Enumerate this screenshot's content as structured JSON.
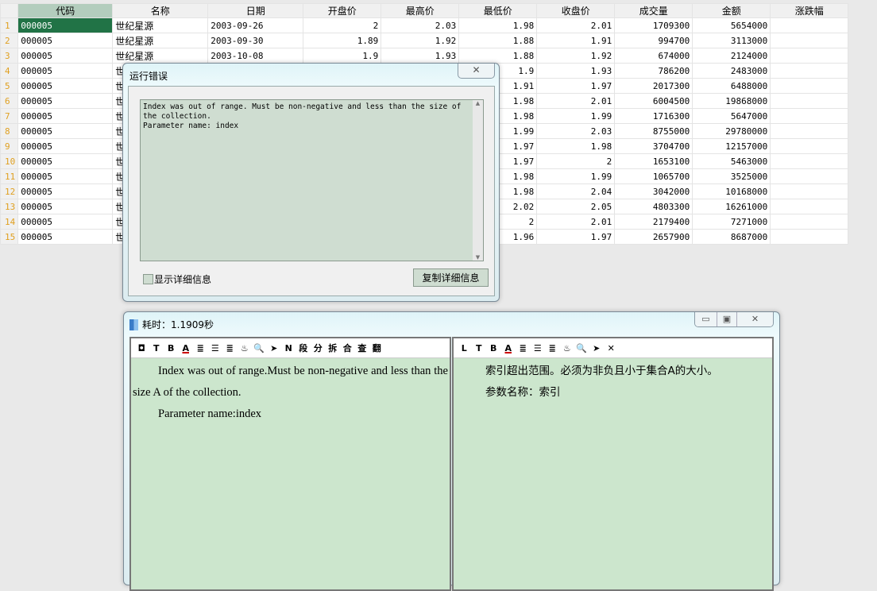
{
  "grid": {
    "columns": [
      "代码",
      "名称",
      "日期",
      "开盘价",
      "最高价",
      "最低价",
      "收盘价",
      "成交量",
      "金额",
      "涨跌幅"
    ],
    "rows": [
      [
        "1",
        "000005",
        "世纪星源",
        "2003-09-26",
        "2",
        "2.03",
        "1.98",
        "2.01",
        "1709300",
        "5654000",
        ""
      ],
      [
        "2",
        "000005",
        "世纪星源",
        "2003-09-30",
        "1.89",
        "1.92",
        "1.88",
        "1.91",
        "994700",
        "3113000",
        ""
      ],
      [
        "3",
        "000005",
        "世纪星源",
        "2003-10-08",
        "1.9",
        "1.93",
        "1.88",
        "1.92",
        "674000",
        "2124000",
        ""
      ],
      [
        "4",
        "000005",
        "世",
        "",
        "",
        "",
        "1.9",
        "1.93",
        "786200",
        "2483000",
        ""
      ],
      [
        "5",
        "000005",
        "世",
        "",
        "",
        "",
        "1.91",
        "1.97",
        "2017300",
        "6488000",
        ""
      ],
      [
        "6",
        "000005",
        "世",
        "",
        "",
        "",
        "1.98",
        "2.01",
        "6004500",
        "19868000",
        ""
      ],
      [
        "7",
        "000005",
        "世",
        "",
        "",
        "",
        "1.98",
        "1.99",
        "1716300",
        "5647000",
        ""
      ],
      [
        "8",
        "000005",
        "世",
        "",
        "",
        "",
        "1.99",
        "2.03",
        "8755000",
        "29780000",
        ""
      ],
      [
        "9",
        "000005",
        "世",
        "",
        "",
        "",
        "1.97",
        "1.98",
        "3704700",
        "12157000",
        ""
      ],
      [
        "10",
        "000005",
        "世",
        "",
        "",
        "",
        "1.97",
        "2",
        "1653100",
        "5463000",
        ""
      ],
      [
        "11",
        "000005",
        "世",
        "",
        "",
        "",
        "1.98",
        "1.99",
        "1065700",
        "3525000",
        ""
      ],
      [
        "12",
        "000005",
        "世",
        "",
        "",
        "",
        "1.98",
        "2.04",
        "3042000",
        "10168000",
        ""
      ],
      [
        "13",
        "000005",
        "世",
        "",
        "",
        "",
        "2.02",
        "2.05",
        "4803300",
        "16261000",
        ""
      ],
      [
        "14",
        "000005",
        "世",
        "",
        "",
        "",
        "2",
        "2.01",
        "2179400",
        "7271000",
        ""
      ],
      [
        "15",
        "000005",
        "世",
        "",
        "",
        "",
        "1.96",
        "1.97",
        "2657900",
        "8687000",
        ""
      ]
    ]
  },
  "error_dialog": {
    "title": "运行错误",
    "close": "✕",
    "message": "Index was out of range. Must be non-negative and less than the size of the collection.\nParameter name: index",
    "show_details": "显示详细信息",
    "copy_details": "复制详细信息"
  },
  "translate_window": {
    "title": "耗时：1.1909秒",
    "min": "▭",
    "max": "▣",
    "close": "✕",
    "left_toolbar": [
      "◘",
      "T",
      "B",
      "A",
      "≣",
      "☰",
      "≣",
      "♨",
      "🔍",
      "➤",
      "N",
      "段",
      "分",
      "拆",
      "合",
      "查",
      "翻"
    ],
    "right_toolbar": [
      "L",
      "T",
      "B",
      "A",
      "≣",
      "☰",
      "≣",
      "♨",
      "🔍",
      "➤",
      "✕"
    ],
    "left_text": [
      "Index was out of range.Must be non-negative and less than the size A of the collection.",
      "Parameter name:index"
    ],
    "right_text": [
      "索引超出范围。必须为非负且小于集合A的大小。",
      "参数名称：索引"
    ]
  }
}
